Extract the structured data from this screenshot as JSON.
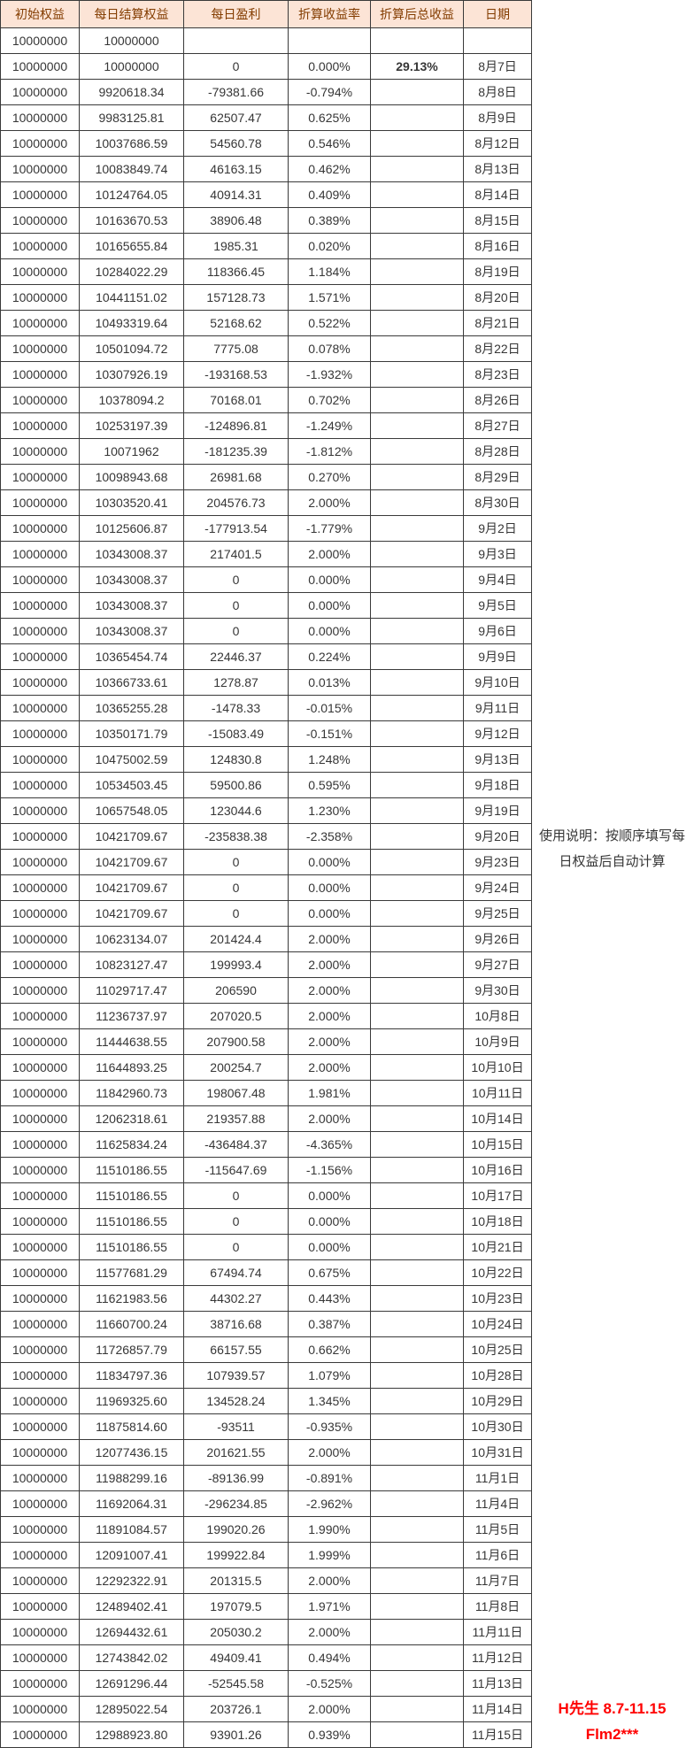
{
  "table": {
    "headers": [
      "初始权益",
      "每日结算权益",
      "每日盈利",
      "折算收益率",
      "折算后总收益",
      "日期"
    ],
    "rows": [
      [
        "10000000",
        "10000000",
        "",
        "",
        "",
        ""
      ],
      [
        "10000000",
        "10000000",
        "0",
        "0.000%",
        "29.13%",
        "8月7日"
      ],
      [
        "10000000",
        "9920618.34",
        "-79381.66",
        "-0.794%",
        "",
        "8月8日"
      ],
      [
        "10000000",
        "9983125.81",
        "62507.47",
        "0.625%",
        "",
        "8月9日"
      ],
      [
        "10000000",
        "10037686.59",
        "54560.78",
        "0.546%",
        "",
        "8月12日"
      ],
      [
        "10000000",
        "10083849.74",
        "46163.15",
        "0.462%",
        "",
        "8月13日"
      ],
      [
        "10000000",
        "10124764.05",
        "40914.31",
        "0.409%",
        "",
        "8月14日"
      ],
      [
        "10000000",
        "10163670.53",
        "38906.48",
        "0.389%",
        "",
        "8月15日"
      ],
      [
        "10000000",
        "10165655.84",
        "1985.31",
        "0.020%",
        "",
        "8月16日"
      ],
      [
        "10000000",
        "10284022.29",
        "118366.45",
        "1.184%",
        "",
        "8月19日"
      ],
      [
        "10000000",
        "10441151.02",
        "157128.73",
        "1.571%",
        "",
        "8月20日"
      ],
      [
        "10000000",
        "10493319.64",
        "52168.62",
        "0.522%",
        "",
        "8月21日"
      ],
      [
        "10000000",
        "10501094.72",
        "7775.08",
        "0.078%",
        "",
        "8月22日"
      ],
      [
        "10000000",
        "10307926.19",
        "-193168.53",
        "-1.932%",
        "",
        "8月23日"
      ],
      [
        "10000000",
        "10378094.2",
        "70168.01",
        "0.702%",
        "",
        "8月26日"
      ],
      [
        "10000000",
        "10253197.39",
        "-124896.81",
        "-1.249%",
        "",
        "8月27日"
      ],
      [
        "10000000",
        "10071962",
        "-181235.39",
        "-1.812%",
        "",
        "8月28日"
      ],
      [
        "10000000",
        "10098943.68",
        "26981.68",
        "0.270%",
        "",
        "8月29日"
      ],
      [
        "10000000",
        "10303520.41",
        "204576.73",
        "2.000%",
        "",
        "8月30日"
      ],
      [
        "10000000",
        "10125606.87",
        "-177913.54",
        "-1.779%",
        "",
        "9月2日"
      ],
      [
        "10000000",
        "10343008.37",
        "217401.5",
        "2.000%",
        "",
        "9月3日"
      ],
      [
        "10000000",
        "10343008.37",
        "0",
        "0.000%",
        "",
        "9月4日"
      ],
      [
        "10000000",
        "10343008.37",
        "0",
        "0.000%",
        "",
        "9月5日"
      ],
      [
        "10000000",
        "10343008.37",
        "0",
        "0.000%",
        "",
        "9月6日"
      ],
      [
        "10000000",
        "10365454.74",
        "22446.37",
        "0.224%",
        "",
        "9月9日"
      ],
      [
        "10000000",
        "10366733.61",
        "1278.87",
        "0.013%",
        "",
        "9月10日"
      ],
      [
        "10000000",
        "10365255.28",
        "-1478.33",
        "-0.015%",
        "",
        "9月11日"
      ],
      [
        "10000000",
        "10350171.79",
        "-15083.49",
        "-0.151%",
        "",
        "9月12日"
      ],
      [
        "10000000",
        "10475002.59",
        "124830.8",
        "1.248%",
        "",
        "9月13日"
      ],
      [
        "10000000",
        "10534503.45",
        "59500.86",
        "0.595%",
        "",
        "9月18日"
      ],
      [
        "10000000",
        "10657548.05",
        "123044.6",
        "1.230%",
        "",
        "9月19日"
      ],
      [
        "10000000",
        "10421709.67",
        "-235838.38",
        "-2.358%",
        "",
        "9月20日"
      ],
      [
        "10000000",
        "10421709.67",
        "0",
        "0.000%",
        "",
        "9月23日"
      ],
      [
        "10000000",
        "10421709.67",
        "0",
        "0.000%",
        "",
        "9月24日"
      ],
      [
        "10000000",
        "10421709.67",
        "0",
        "0.000%",
        "",
        "9月25日"
      ],
      [
        "10000000",
        "10623134.07",
        "201424.4",
        "2.000%",
        "",
        "9月26日"
      ],
      [
        "10000000",
        "10823127.47",
        "199993.4",
        "2.000%",
        "",
        "9月27日"
      ],
      [
        "10000000",
        "11029717.47",
        "206590",
        "2.000%",
        "",
        "9月30日"
      ],
      [
        "10000000",
        "11236737.97",
        "207020.5",
        "2.000%",
        "",
        "10月8日"
      ],
      [
        "10000000",
        "11444638.55",
        "207900.58",
        "2.000%",
        "",
        "10月9日"
      ],
      [
        "10000000",
        "11644893.25",
        "200254.7",
        "2.000%",
        "",
        "10月10日"
      ],
      [
        "10000000",
        "11842960.73",
        "198067.48",
        "1.981%",
        "",
        "10月11日"
      ],
      [
        "10000000",
        "12062318.61",
        "219357.88",
        "2.000%",
        "",
        "10月14日"
      ],
      [
        "10000000",
        "11625834.24",
        "-436484.37",
        "-4.365%",
        "",
        "10月15日"
      ],
      [
        "10000000",
        "11510186.55",
        "-115647.69",
        "-1.156%",
        "",
        "10月16日"
      ],
      [
        "10000000",
        "11510186.55",
        "0",
        "0.000%",
        "",
        "10月17日"
      ],
      [
        "10000000",
        "11510186.55",
        "0",
        "0.000%",
        "",
        "10月18日"
      ],
      [
        "10000000",
        "11510186.55",
        "0",
        "0.000%",
        "",
        "10月21日"
      ],
      [
        "10000000",
        "11577681.29",
        "67494.74",
        "0.675%",
        "",
        "10月22日"
      ],
      [
        "10000000",
        "11621983.56",
        "44302.27",
        "0.443%",
        "",
        "10月23日"
      ],
      [
        "10000000",
        "11660700.24",
        "38716.68",
        "0.387%",
        "",
        "10月24日"
      ],
      [
        "10000000",
        "11726857.79",
        "66157.55",
        "0.662%",
        "",
        "10月25日"
      ],
      [
        "10000000",
        "11834797.36",
        "107939.57",
        "1.079%",
        "",
        "10月28日"
      ],
      [
        "10000000",
        "11969325.60",
        "134528.24",
        "1.345%",
        "",
        "10月29日"
      ],
      [
        "10000000",
        "11875814.60",
        "-93511",
        "-0.935%",
        "",
        "10月30日"
      ],
      [
        "10000000",
        "12077436.15",
        "201621.55",
        "2.000%",
        "",
        "10月31日"
      ],
      [
        "10000000",
        "11988299.16",
        "-89136.99",
        "-0.891%",
        "",
        "11月1日"
      ],
      [
        "10000000",
        "11692064.31",
        "-296234.85",
        "-2.962%",
        "",
        "11月4日"
      ],
      [
        "10000000",
        "11891084.57",
        "199020.26",
        "1.990%",
        "",
        "11月5日"
      ],
      [
        "10000000",
        "12091007.41",
        "199922.84",
        "1.999%",
        "",
        "11月6日"
      ],
      [
        "10000000",
        "12292322.91",
        "201315.5",
        "2.000%",
        "",
        "11月7日"
      ],
      [
        "10000000",
        "12489402.41",
        "197079.5",
        "1.971%",
        "",
        "11月8日"
      ],
      [
        "10000000",
        "12694432.61",
        "205030.2",
        "2.000%",
        "",
        "11月11日"
      ],
      [
        "10000000",
        "12743842.02",
        "49409.41",
        "0.494%",
        "",
        "11月12日"
      ],
      [
        "10000000",
        "12691296.44",
        "-52545.58",
        "-0.525%",
        "",
        "11月13日"
      ],
      [
        "10000000",
        "12895022.54",
        "203726.1",
        "2.000%",
        "",
        "11月14日"
      ],
      [
        "10000000",
        "12988923.80",
        "93901.26",
        "0.939%",
        "",
        "11月15日"
      ]
    ],
    "total_return_value": "29.13%"
  },
  "annotations": {
    "usage_note_line1": "使用说明：按顺序填写每",
    "usage_note_line2": "日权益后自动计算",
    "trader_label": "H先生 8.7-11.15",
    "account_label": "Flm2***"
  },
  "colors": {
    "header_bg": "#fce4d6",
    "header_text": "#833c00",
    "cell_text": "#363636",
    "accent_red": "#ff0000",
    "border": "#3a3a3a"
  }
}
